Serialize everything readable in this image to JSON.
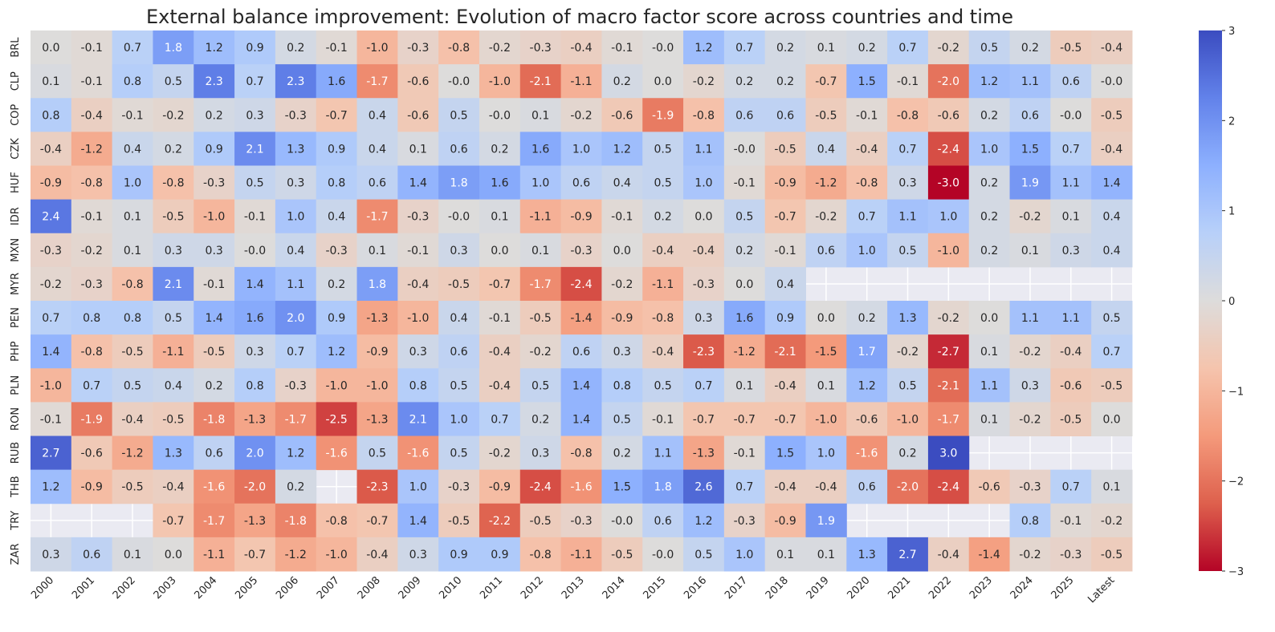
{
  "chart_data": {
    "type": "heatmap",
    "title": "External balance improvement: Evolution of macro factor score across countries and time",
    "xlabel": "",
    "ylabel": "",
    "colormap": "coolwarm",
    "vmin": -3,
    "vmax": 3,
    "missing_color": "#eaeaf2",
    "colorbar_ticks": [
      3,
      2,
      1,
      0,
      -1,
      -2,
      -3
    ],
    "colorbar_tick_labels": [
      "3",
      "2",
      "1",
      "0",
      "−1",
      "−2",
      "−3"
    ],
    "x_labels": [
      "2000",
      "2001",
      "2002",
      "2003",
      "2004",
      "2005",
      "2006",
      "2007",
      "2008",
      "2009",
      "2010",
      "2011",
      "2012",
      "2013",
      "2014",
      "2015",
      "2016",
      "2017",
      "2018",
      "2019",
      "2020",
      "2021",
      "2022",
      "2023",
      "2024",
      "2025",
      "Latest"
    ],
    "y_labels": [
      "BRL",
      "CLP",
      "COP",
      "CZK",
      "HUF",
      "IDR",
      "MXN",
      "MYR",
      "PEN",
      "PHP",
      "PLN",
      "RON",
      "RUB",
      "THB",
      "TRY",
      "ZAR"
    ],
    "values": [
      [
        0.0,
        -0.1,
        0.7,
        1.8,
        1.2,
        0.9,
        0.2,
        -0.1,
        -1.0,
        -0.3,
        -0.8,
        -0.2,
        -0.3,
        -0.4,
        -0.1,
        -0.0,
        1.2,
        0.7,
        0.2,
        0.1,
        0.2,
        0.7,
        -0.2,
        0.5,
        0.2,
        -0.5,
        -0.4
      ],
      [
        0.1,
        -0.1,
        0.8,
        0.5,
        2.3,
        0.7,
        2.3,
        1.6,
        -1.7,
        -0.6,
        -0.0,
        -1.0,
        -2.1,
        -1.1,
        0.2,
        0.0,
        -0.2,
        0.2,
        0.2,
        -0.7,
        1.5,
        -0.1,
        -2.0,
        1.2,
        1.1,
        0.6,
        -0.0
      ],
      [
        0.8,
        -0.4,
        -0.1,
        -0.2,
        0.2,
        0.3,
        -0.3,
        -0.7,
        0.4,
        -0.6,
        0.5,
        -0.0,
        0.1,
        -0.2,
        -0.6,
        -1.9,
        -0.8,
        0.6,
        0.6,
        -0.5,
        -0.1,
        -0.8,
        -0.6,
        0.2,
        0.6,
        -0.0,
        -0.5
      ],
      [
        -0.4,
        -1.2,
        0.4,
        0.2,
        0.9,
        2.1,
        1.3,
        0.9,
        0.4,
        0.1,
        0.6,
        0.2,
        1.6,
        1.0,
        1.2,
        0.5,
        1.1,
        -0.0,
        -0.5,
        0.4,
        -0.4,
        0.7,
        -2.4,
        1.0,
        1.5,
        0.7,
        -0.4
      ],
      [
        -0.9,
        -0.8,
        1.0,
        -0.8,
        -0.3,
        0.5,
        0.3,
        0.8,
        0.6,
        1.4,
        1.8,
        1.6,
        1.0,
        0.6,
        0.4,
        0.5,
        1.0,
        -0.1,
        -0.9,
        -1.2,
        -0.8,
        0.3,
        -3.0,
        0.2,
        1.9,
        1.1,
        1.4
      ],
      [
        2.4,
        -0.1,
        0.1,
        -0.5,
        -1.0,
        -0.1,
        1.0,
        0.4,
        -1.7,
        -0.3,
        -0.0,
        0.1,
        -1.1,
        -0.9,
        -0.1,
        0.2,
        0.0,
        0.5,
        -0.7,
        -0.2,
        0.7,
        1.1,
        1.0,
        0.2,
        -0.2,
        0.1,
        0.4
      ],
      [
        -0.3,
        -0.2,
        0.1,
        0.3,
        0.3,
        -0.0,
        0.4,
        -0.3,
        0.1,
        -0.1,
        0.3,
        0.0,
        0.1,
        -0.3,
        0.0,
        -0.4,
        -0.4,
        0.2,
        -0.1,
        0.6,
        1.0,
        0.5,
        -1.0,
        0.2,
        0.1,
        0.3,
        0.4
      ],
      [
        -0.2,
        -0.3,
        -0.8,
        2.1,
        -0.1,
        1.4,
        1.1,
        0.2,
        1.8,
        -0.4,
        -0.5,
        -0.7,
        -1.7,
        -2.4,
        -0.2,
        -1.1,
        -0.3,
        0.0,
        0.4,
        null,
        null,
        null,
        null,
        null,
        null,
        null,
        null
      ],
      [
        0.7,
        0.8,
        0.8,
        0.5,
        1.4,
        1.6,
        2.0,
        0.9,
        -1.3,
        -1.0,
        0.4,
        -0.1,
        -0.5,
        -1.4,
        -0.9,
        -0.8,
        0.3,
        1.6,
        0.9,
        0.0,
        0.2,
        1.3,
        -0.2,
        0.0,
        1.1,
        1.1,
        0.5
      ],
      [
        1.4,
        -0.8,
        -0.5,
        -1.1,
        -0.5,
        0.3,
        0.7,
        1.2,
        -0.9,
        0.3,
        0.6,
        -0.4,
        -0.2,
        0.6,
        0.3,
        -0.4,
        -2.3,
        -1.2,
        -2.1,
        -1.5,
        1.7,
        -0.2,
        -2.7,
        0.1,
        -0.2,
        -0.4,
        0.7
      ],
      [
        -1.0,
        0.7,
        0.5,
        0.4,
        0.2,
        0.8,
        -0.3,
        -1.0,
        -1.0,
        0.8,
        0.5,
        -0.4,
        0.5,
        1.4,
        0.8,
        0.5,
        0.7,
        0.1,
        -0.4,
        0.1,
        1.2,
        0.5,
        -2.1,
        1.1,
        0.3,
        -0.6,
        -0.5
      ],
      [
        -0.1,
        -1.9,
        -0.4,
        -0.5,
        -1.8,
        -1.3,
        -1.7,
        -2.5,
        -1.3,
        2.1,
        1.0,
        0.7,
        0.2,
        1.4,
        0.5,
        -0.1,
        -0.7,
        -0.7,
        -0.7,
        -1.0,
        -0.6,
        -1.0,
        -1.7,
        0.1,
        -0.2,
        -0.5,
        0.0
      ],
      [
        2.7,
        -0.6,
        -1.2,
        1.3,
        0.6,
        2.0,
        1.2,
        -1.6,
        0.5,
        -1.6,
        0.5,
        -0.2,
        0.3,
        -0.8,
        0.2,
        1.1,
        -1.3,
        -0.1,
        1.5,
        1.0,
        -1.6,
        0.2,
        3.0,
        null,
        null,
        null,
        null
      ],
      [
        1.2,
        -0.9,
        -0.5,
        -0.4,
        -1.6,
        -2.0,
        0.2,
        null,
        -2.3,
        1.0,
        -0.3,
        -0.9,
        -2.4,
        -1.6,
        1.5,
        1.8,
        2.6,
        0.7,
        -0.4,
        -0.4,
        0.6,
        -2.0,
        -2.4,
        -0.6,
        -0.3,
        0.7,
        0.1
      ],
      [
        null,
        null,
        null,
        -0.7,
        -1.7,
        -1.3,
        -1.8,
        -0.8,
        -0.7,
        1.4,
        -0.5,
        -2.2,
        -0.5,
        -0.3,
        -0.0,
        0.6,
        1.2,
        -0.3,
        -0.9,
        1.9,
        null,
        null,
        null,
        null,
        0.8,
        -0.1,
        -0.2
      ],
      [
        0.3,
        0.6,
        0.1,
        0.0,
        -1.1,
        -0.7,
        -1.2,
        -1.0,
        -0.4,
        0.3,
        0.9,
        0.9,
        -0.8,
        -1.1,
        -0.5,
        -0.0,
        0.5,
        1.0,
        0.1,
        0.1,
        1.3,
        2.7,
        -0.4,
        -1.4,
        -0.2,
        -0.3,
        -0.5
      ]
    ]
  }
}
